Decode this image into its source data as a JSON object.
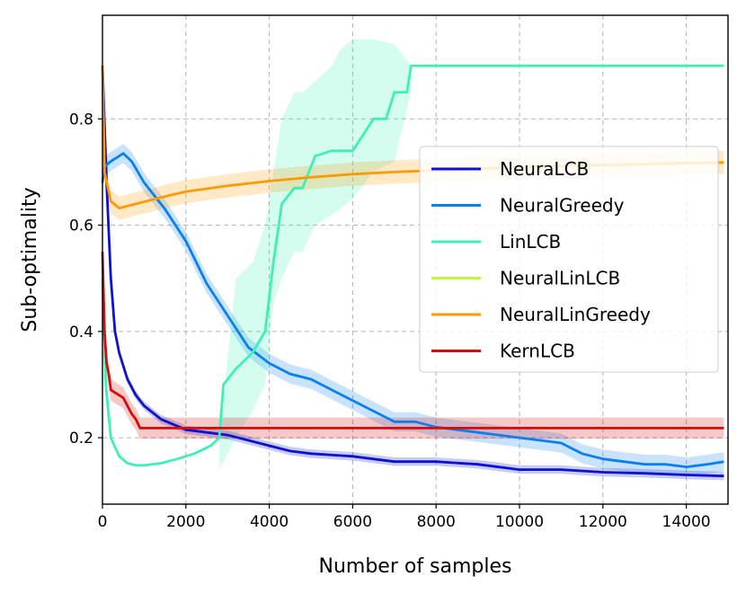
{
  "chart_data": {
    "type": "line",
    "title": "",
    "xlabel": "Number of samples",
    "ylabel": "Sub-optimality",
    "xlim": [
      0,
      15000
    ],
    "ylim": [
      0.075,
      0.995
    ],
    "xticks": [
      0,
      2000,
      4000,
      6000,
      8000,
      10000,
      12000,
      14000
    ],
    "xtick_labels": [
      "0",
      "2000",
      "4000",
      "6000",
      "8000",
      "10000",
      "12000",
      "14000"
    ],
    "yticks": [
      0.2,
      0.4,
      0.6,
      0.8
    ],
    "ytick_labels": [
      "0.2",
      "0.4",
      "0.6",
      "0.8"
    ],
    "grid": true,
    "legend_position": "center-right",
    "series": [
      {
        "name": "NeuraLCB",
        "color": "#0b12d2",
        "x": [
          0,
          100,
          200,
          300,
          400,
          600,
          800,
          1000,
          1400,
          2000,
          2500,
          3000,
          3500,
          4000,
          4500,
          5000,
          6000,
          7000,
          8000,
          9000,
          10000,
          11000,
          12000,
          13000,
          14000,
          14900
        ],
        "y": [
          0.9,
          0.68,
          0.5,
          0.4,
          0.36,
          0.31,
          0.28,
          0.26,
          0.235,
          0.215,
          0.21,
          0.205,
          0.195,
          0.185,
          0.175,
          0.17,
          0.165,
          0.155,
          0.155,
          0.15,
          0.14,
          0.14,
          0.135,
          0.133,
          0.13,
          0.128
        ],
        "band": 0.008
      },
      {
        "name": "NeuralGreedy",
        "color": "#0a7ff0",
        "x": [
          0,
          50,
          200,
          500,
          700,
          1000,
          1500,
          2000,
          2500,
          3000,
          3500,
          4000,
          4500,
          5000,
          5500,
          6000,
          6500,
          7000,
          7500,
          8000,
          8500,
          9000,
          9500,
          10000,
          10500,
          11000,
          11500,
          12000,
          12500,
          13000,
          13500,
          14000,
          14500,
          14900
        ],
        "y": [
          0.68,
          0.71,
          0.72,
          0.735,
          0.72,
          0.68,
          0.63,
          0.57,
          0.49,
          0.43,
          0.37,
          0.34,
          0.32,
          0.31,
          0.29,
          0.27,
          0.25,
          0.23,
          0.23,
          0.22,
          0.215,
          0.21,
          0.205,
          0.2,
          0.195,
          0.19,
          0.17,
          0.16,
          0.155,
          0.15,
          0.15,
          0.145,
          0.15,
          0.155
        ],
        "band": 0.018
      },
      {
        "name": "LinLCB",
        "color": "#3cf0b8",
        "x": [
          0,
          80,
          200,
          400,
          600,
          800,
          1000,
          1400,
          1800,
          2200,
          2600,
          2800,
          2900,
          3200,
          3600,
          3900,
          4100,
          4300,
          4600,
          4800,
          5100,
          5500,
          5700,
          6000,
          6500,
          6800,
          7000,
          7300,
          7400,
          8000,
          10000,
          12000,
          14000,
          14900
        ],
        "y": [
          0.5,
          0.3,
          0.2,
          0.165,
          0.152,
          0.148,
          0.148,
          0.152,
          0.16,
          0.17,
          0.185,
          0.2,
          0.3,
          0.33,
          0.36,
          0.4,
          0.53,
          0.64,
          0.67,
          0.67,
          0.73,
          0.74,
          0.74,
          0.74,
          0.8,
          0.8,
          0.85,
          0.85,
          0.9,
          0.9,
          0.9,
          0.9,
          0.9,
          0.9
        ],
        "band_x": [
          2800,
          3200,
          3600,
          3900,
          4100,
          4300,
          4600,
          4800,
          5100,
          5500,
          5700,
          6000,
          6500,
          7000,
          7400
        ],
        "band_lower": [
          0.14,
          0.2,
          0.25,
          0.3,
          0.45,
          0.5,
          0.55,
          0.55,
          0.6,
          0.62,
          0.63,
          0.65,
          0.7,
          0.72,
          0.85
        ],
        "band_upper": [
          0.2,
          0.5,
          0.53,
          0.6,
          0.7,
          0.8,
          0.85,
          0.85,
          0.87,
          0.9,
          0.93,
          0.95,
          0.95,
          0.94,
          0.9
        ]
      },
      {
        "name": "NeuralLinLCB",
        "color": "#c0f83c",
        "x": [],
        "y": [],
        "band": 0
      },
      {
        "name": "NeuralLinGreedy",
        "color": "#ff9a00",
        "x": [
          0,
          50,
          200,
          400,
          800,
          1200,
          1600,
          2000,
          3000,
          4000,
          5000,
          6000,
          7000,
          8000,
          9000,
          10000,
          11000,
          12000,
          13000,
          14000,
          14900
        ],
        "y": [
          0.9,
          0.7,
          0.645,
          0.632,
          0.64,
          0.648,
          0.656,
          0.663,
          0.674,
          0.683,
          0.69,
          0.696,
          0.7,
          0.703,
          0.706,
          0.709,
          0.711,
          0.713,
          0.715,
          0.717,
          0.718
        ],
        "band": 0.022
      },
      {
        "name": "KernLCB",
        "color": "#d80a0a",
        "x": [
          0,
          50,
          100,
          150,
          200,
          300,
          500,
          600,
          700,
          800,
          900,
          2000,
          4000,
          6000,
          8000,
          10000,
          12000,
          14000,
          14900
        ],
        "y": [
          0.55,
          0.4,
          0.34,
          0.32,
          0.29,
          0.285,
          0.275,
          0.26,
          0.245,
          0.235,
          0.218,
          0.218,
          0.218,
          0.218,
          0.218,
          0.218,
          0.218,
          0.218,
          0.218
        ],
        "band": 0.02
      }
    ]
  }
}
